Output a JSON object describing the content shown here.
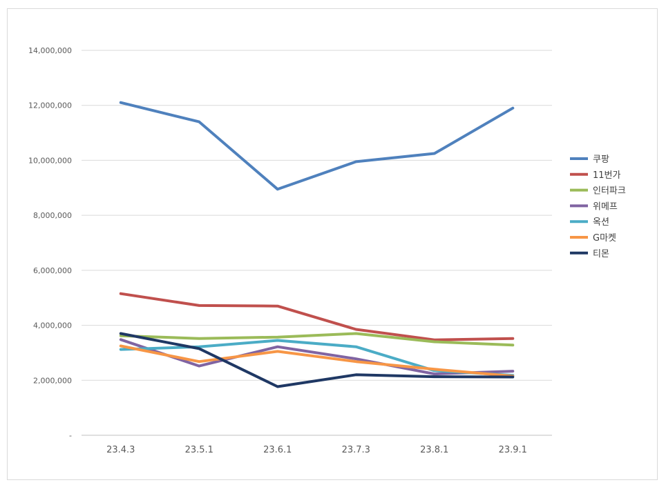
{
  "chart_data": {
    "type": "line",
    "title": "",
    "xlabel": "",
    "ylabel": "",
    "categories": [
      "23.4.3",
      "23.5.1",
      "23.6.1",
      "23.7.3",
      "23.8.1",
      "23.9.1"
    ],
    "ylim": [
      0,
      14000000
    ],
    "y_ticks": [
      0,
      2000000,
      4000000,
      6000000,
      8000000,
      10000000,
      12000000,
      14000000
    ],
    "y_tick_labels": [
      "-",
      "2,000,000",
      "4,000,000",
      "6,000,000",
      "8,000,000",
      "10,000,000",
      "12,000,000",
      "14,000,000"
    ],
    "grid": "horizontal",
    "legend_position": "right",
    "series": [
      {
        "name": "쿠팡",
        "color": "#4F81BD",
        "values": [
          12100000,
          11400000,
          8950000,
          9950000,
          10250000,
          11900000
        ]
      },
      {
        "name": "11번가",
        "color": "#C0504D",
        "values": [
          5150000,
          4720000,
          4700000,
          3850000,
          3470000,
          3520000
        ]
      },
      {
        "name": "인터파크",
        "color": "#9BBB59",
        "values": [
          3620000,
          3520000,
          3570000,
          3700000,
          3400000,
          3280000
        ]
      },
      {
        "name": "위메프",
        "color": "#8064A2",
        "values": [
          3480000,
          2520000,
          3220000,
          2780000,
          2230000,
          2330000
        ]
      },
      {
        "name": "옥션",
        "color": "#4BACC6",
        "values": [
          3120000,
          3220000,
          3450000,
          3220000,
          2350000,
          2180000
        ]
      },
      {
        "name": "G마켓",
        "color": "#F79646",
        "values": [
          3250000,
          2680000,
          3050000,
          2680000,
          2400000,
          2150000
        ]
      },
      {
        "name": "티몬",
        "color": "#1F3864",
        "values": [
          3700000,
          3150000,
          1770000,
          2200000,
          2130000,
          2120000
        ]
      }
    ]
  }
}
